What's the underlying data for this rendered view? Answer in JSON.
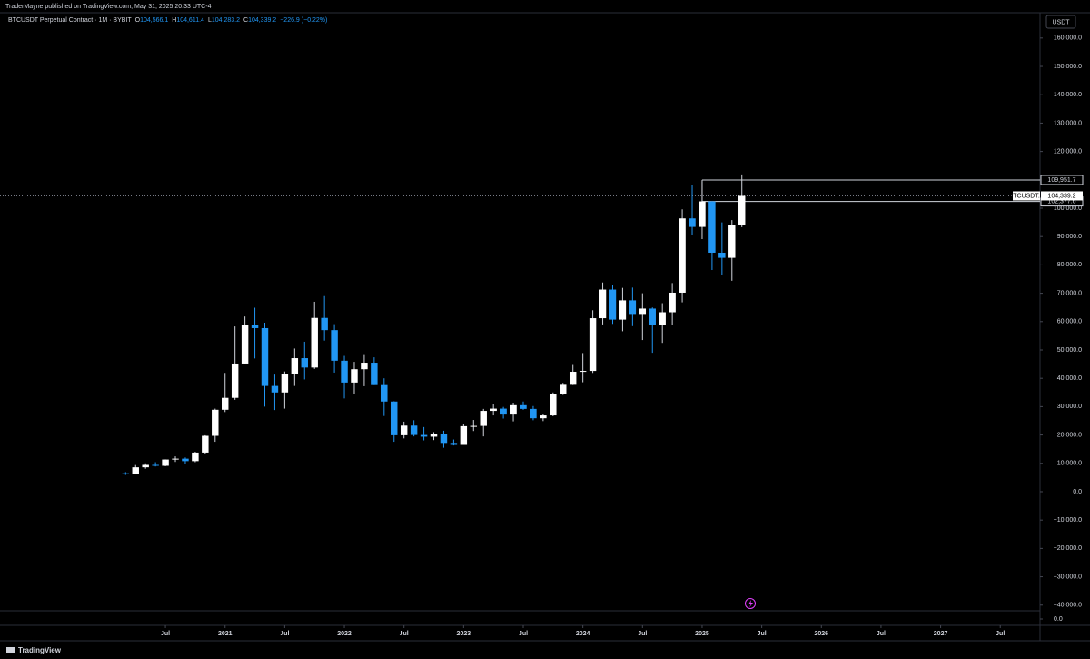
{
  "chart_data": {
    "type": "candlestick",
    "publisher_note": "TraderMayne published on TradingView.com, May 31, 2025 20:33 UTC-4",
    "title": "BTCUSDT Perpetual Contract · 1M · BYBIT",
    "ohlc_legend": [
      {
        "label": "O",
        "value": "104,566.1"
      },
      {
        "label": "H",
        "value": "104,611.4"
      },
      {
        "label": "L",
        "value": "104,283.2"
      },
      {
        "label": "C",
        "value": "104,339.2"
      }
    ],
    "change": "−226.9 (−0.22%)",
    "currency": "USDT",
    "footer": "TradingView",
    "up_color": "#ffffff",
    "down_color": "#2196f3",
    "x": [
      "2020-03",
      "2020-04",
      "2020-05",
      "2020-06",
      "2020-07",
      "2020-08",
      "2020-09",
      "2020-10",
      "2020-11",
      "2020-12",
      "2021-01",
      "2021-02",
      "2021-03",
      "2021-04",
      "2021-05",
      "2021-06",
      "2021-07",
      "2021-08",
      "2021-09",
      "2021-10",
      "2021-11",
      "2021-12",
      "2022-01",
      "2022-02",
      "2022-03",
      "2022-04",
      "2022-05",
      "2022-06",
      "2022-07",
      "2022-08",
      "2022-09",
      "2022-10",
      "2022-11",
      "2022-12",
      "2023-01",
      "2023-02",
      "2023-03",
      "2023-04",
      "2023-05",
      "2023-06",
      "2023-07",
      "2023-08",
      "2023-09",
      "2023-10",
      "2023-11",
      "2023-12",
      "2024-01",
      "2024-02",
      "2024-03",
      "2024-04",
      "2024-05",
      "2024-06",
      "2024-07",
      "2024-08",
      "2024-09",
      "2024-10",
      "2024-11",
      "2024-12",
      "2025-01",
      "2025-02",
      "2025-03",
      "2025-04",
      "2025-05"
    ],
    "open": [
      6500,
      6400,
      8600,
      9450,
      9130,
      11350,
      11650,
      10780,
      13800,
      19700,
      28900,
      33100,
      45200,
      58800,
      57700,
      37300,
      35000,
      41500,
      47100,
      43800,
      61300,
      57000,
      46200,
      38500,
      43200,
      45500,
      37600,
      31800,
      19900,
      23300,
      20000,
      19400,
      20500,
      17200,
      16500,
      23100,
      23200,
      28500,
      29300,
      27200,
      30500,
      29200,
      25900,
      26900,
      34600,
      37700,
      42300,
      42600,
      61200,
      71300,
      60700,
      67500,
      62700,
      64600,
      58900,
      63300,
      70200,
      96400,
      93400,
      102400,
      84300,
      82500,
      94200
    ],
    "high": [
      6900,
      9400,
      10000,
      10400,
      11400,
      12470,
      12080,
      14100,
      19900,
      29300,
      41900,
      58300,
      61800,
      64900,
      59600,
      41300,
      42400,
      50500,
      52900,
      67000,
      69000,
      59100,
      47900,
      45800,
      48200,
      47400,
      40000,
      31900,
      24700,
      25200,
      22800,
      21000,
      21500,
      18400,
      23900,
      25300,
      29200,
      31000,
      29900,
      31400,
      31800,
      30200,
      27500,
      35000,
      38400,
      44700,
      48900,
      64000,
      73800,
      72800,
      71900,
      72000,
      70000,
      65000,
      66500,
      73600,
      99600,
      108300,
      109400,
      102500,
      95000,
      95800,
      111900
    ],
    "low": [
      5900,
      6200,
      8100,
      8900,
      8980,
      10500,
      9880,
      10400,
      13200,
      17600,
      28100,
      32400,
      45000,
      47000,
      30000,
      28800,
      29300,
      37300,
      39600,
      43300,
      53300,
      42000,
      32900,
      34300,
      37200,
      37600,
      26700,
      17600,
      18800,
      19500,
      18100,
      18200,
      15500,
      16300,
      16500,
      21400,
      19500,
      26900,
      25800,
      24800,
      28900,
      25200,
      24900,
      26600,
      34100,
      37600,
      38600,
      41900,
      59000,
      59200,
      56600,
      58400,
      53500,
      49000,
      52500,
      58900,
      66800,
      90500,
      89100,
      78200,
      76600,
      74400,
      93300
    ],
    "close": [
      6400,
      8600,
      9450,
      9130,
      11350,
      11650,
      10780,
      13800,
      19700,
      28900,
      33100,
      45200,
      58800,
      57700,
      37300,
      35000,
      41500,
      47100,
      43800,
      61300,
      57000,
      46200,
      38500,
      43200,
      45500,
      37600,
      31800,
      19900,
      23300,
      20000,
      19400,
      20500,
      17200,
      16500,
      23100,
      23200,
      28500,
      29300,
      27200,
      30500,
      29200,
      25900,
      26900,
      34600,
      37700,
      42300,
      42600,
      61200,
      71300,
      60700,
      67500,
      62700,
      64600,
      58900,
      63300,
      70200,
      96400,
      93400,
      102400,
      84300,
      82500,
      94200,
      104339.2
    ],
    "xlim": [
      "2019-03",
      "2027-11"
    ],
    "xticks": [
      {
        "value": "2020-07",
        "label": "Jul"
      },
      {
        "value": "2021-01",
        "label": "2021"
      },
      {
        "value": "2021-07",
        "label": "Jul"
      },
      {
        "value": "2022-01",
        "label": "2022"
      },
      {
        "value": "2022-07",
        "label": "Jul"
      },
      {
        "value": "2023-01",
        "label": "2023"
      },
      {
        "value": "2023-07",
        "label": "Jul"
      },
      {
        "value": "2024-01",
        "label": "2024"
      },
      {
        "value": "2024-07",
        "label": "Jul"
      },
      {
        "value": "2025-01",
        "label": "2025"
      },
      {
        "value": "2025-07",
        "label": "Jul"
      },
      {
        "value": "2026-01",
        "label": "2026"
      },
      {
        "value": "2026-07",
        "label": "Jul"
      },
      {
        "value": "2027-01",
        "label": "2027"
      },
      {
        "value": "2027-07",
        "label": "Jul"
      }
    ],
    "ylim": [
      -42000,
      168600
    ],
    "yticks": [
      {
        "value": 160000,
        "label": "160,000.0"
      },
      {
        "value": 150000,
        "label": "150,000.0"
      },
      {
        "value": 140000,
        "label": "140,000.0"
      },
      {
        "value": 130000,
        "label": "130,000.0"
      },
      {
        "value": 120000,
        "label": "120,000.0"
      },
      {
        "value": 110000,
        "label": "110,000.0"
      },
      {
        "value": 100000,
        "label": "100,000.0"
      },
      {
        "value": 90000,
        "label": "90,000.0"
      },
      {
        "value": 80000,
        "label": "80,000.0"
      },
      {
        "value": 70000,
        "label": "70,000.0"
      },
      {
        "value": 60000,
        "label": "60,000.0"
      },
      {
        "value": 50000,
        "label": "50,000.0"
      },
      {
        "value": 40000,
        "label": "40,000.0"
      },
      {
        "value": 30000,
        "label": "30,000.0"
      },
      {
        "value": 20000,
        "label": "20,000.0"
      },
      {
        "value": 10000,
        "label": "10,000.0"
      },
      {
        "value": 0,
        "label": "0.0"
      },
      {
        "value": -10000,
        "label": "−10,000.0"
      },
      {
        "value": -20000,
        "label": "−20,000.0"
      },
      {
        "value": -30000,
        "label": "−30,000.0"
      },
      {
        "value": -40000,
        "label": "−40,000.0"
      }
    ],
    "lower_pane_yticks": [
      {
        "value": 0,
        "label": "0.0"
      }
    ],
    "price_lines_from": "2025-01",
    "price_lines": [
      {
        "value": 109951.7,
        "label": "109,951.7"
      },
      {
        "value": 102377.6,
        "label": "102,377.6"
      }
    ],
    "last_price": {
      "name": "BTCUSDT.P",
      "value": 104339.2,
      "label": "104,339.2"
    }
  }
}
